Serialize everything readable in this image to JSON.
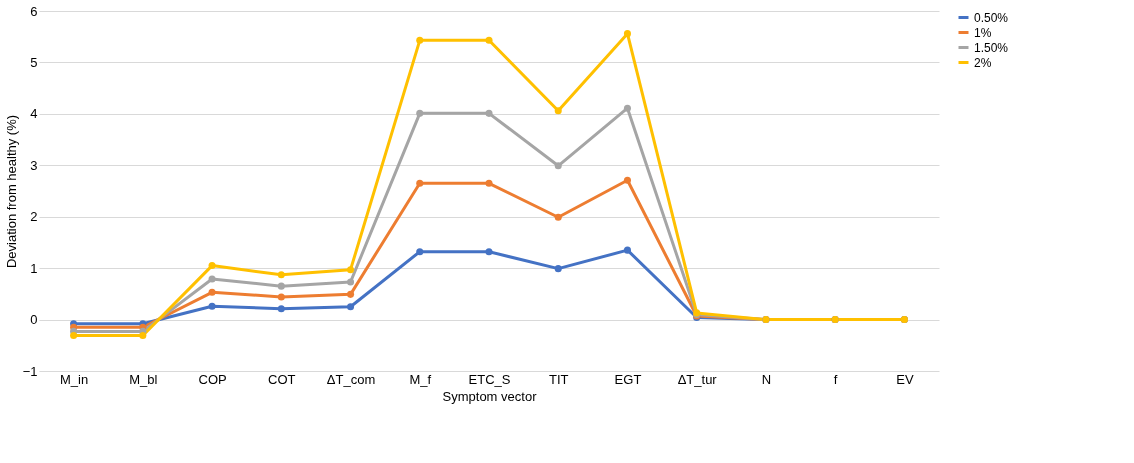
{
  "chart_data": {
    "type": "line",
    "xlabel": "Symptom vector",
    "ylabel": "Deviation from healthy (%)",
    "categories": [
      "M_in",
      "M_bl",
      "COP",
      "COT",
      "ΔT_com",
      "M_f",
      "ETC_S",
      "TIT",
      "EGT",
      "ΔT_tur",
      "N",
      "f",
      "EV"
    ],
    "series": [
      {
        "name": "0.50%",
        "color": "#4472c4",
        "values": [
          -0.08,
          -0.08,
          0.26,
          0.21,
          0.25,
          1.32,
          1.32,
          0.99,
          1.35,
          0.04,
          0,
          0,
          0
        ]
      },
      {
        "name": "1%",
        "color": "#ed7d31",
        "values": [
          -0.15,
          -0.15,
          0.53,
          0.44,
          0.49,
          2.65,
          2.65,
          1.99,
          2.71,
          0.07,
          0,
          0,
          0
        ]
      },
      {
        "name": "1.50%",
        "color": "#a5a5a5",
        "values": [
          -0.23,
          -0.23,
          0.79,
          0.65,
          0.73,
          4.01,
          4.01,
          2.99,
          4.11,
          0.1,
          0,
          0,
          0
        ]
      },
      {
        "name": "2%",
        "color": "#ffc000",
        "values": [
          -0.31,
          -0.31,
          1.05,
          0.87,
          0.97,
          5.43,
          5.43,
          4.06,
          5.56,
          0.13,
          0,
          0,
          0
        ]
      }
    ],
    "ylim": [
      -1,
      6
    ],
    "yticks": [
      -1,
      0,
      1,
      2,
      3,
      4,
      5,
      6
    ],
    "grid": "y",
    "legend": "right",
    "marker": "circle",
    "line_style": "solid"
  }
}
